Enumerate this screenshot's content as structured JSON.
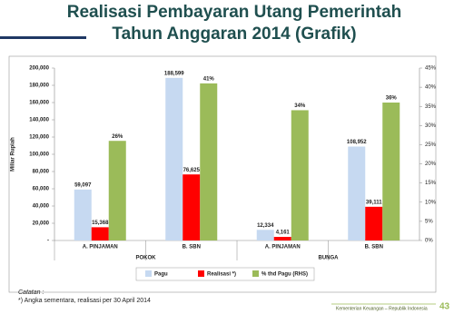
{
  "chart_data": {
    "type": "bar",
    "title": "Realisasi Pembayaran Utang Pemerintah",
    "subtitle": "Tahun Anggaran 2014 (Grafik)",
    "y_label": "Miliar Rupiah",
    "categories": [
      "A. PINJAMAN",
      "B. SBN",
      "A. PINJAMAN",
      "B. SBN"
    ],
    "groups": [
      "POKOK",
      "BUNGA"
    ],
    "series": [
      {
        "name": "Pagu",
        "color": "#c6d9f1",
        "values": [
          59097,
          188599,
          12334,
          108952
        ],
        "value_labels": [
          "59,097",
          "188,599",
          "12,334",
          "108,952"
        ]
      },
      {
        "name": "Realisasi *)",
        "color": "#ff0000",
        "values": [
          15368,
          76625,
          4161,
          39111
        ],
        "value_labels": [
          "15,368",
          "76,625",
          "4,161",
          "39,111"
        ]
      },
      {
        "name": "% thd Pagu (RHS)",
        "color": "#9bbb59",
        "axis": "y2",
        "values": [
          26,
          41,
          34,
          36
        ],
        "value_labels": [
          "26%",
          "41%",
          "34%",
          "36%"
        ]
      }
    ],
    "ylim": [
      0,
      200000
    ],
    "yticks": [
      {
        "value": 0,
        "label": "-"
      },
      {
        "value": 20000,
        "label": "20,000"
      },
      {
        "value": 40000,
        "label": "40,000"
      },
      {
        "value": 60000,
        "label": "60,000"
      },
      {
        "value": 80000,
        "label": "80,000"
      },
      {
        "value": 100000,
        "label": "100,000"
      },
      {
        "value": 120000,
        "label": "120,000"
      },
      {
        "value": 140000,
        "label": "140,000"
      },
      {
        "value": 160000,
        "label": "160,000"
      },
      {
        "value": 180000,
        "label": "180,000"
      },
      {
        "value": 200000,
        "label": "200,000"
      }
    ],
    "y2lim": [
      0,
      45
    ],
    "y2ticks": [
      {
        "value": 0,
        "label": "0%"
      },
      {
        "value": 5,
        "label": "5%"
      },
      {
        "value": 10,
        "label": "10%"
      },
      {
        "value": 15,
        "label": "15%"
      },
      {
        "value": 20,
        "label": "20%"
      },
      {
        "value": 25,
        "label": "25%"
      },
      {
        "value": 30,
        "label": "30%"
      },
      {
        "value": 35,
        "label": "35%"
      },
      {
        "value": 40,
        "label": "40%"
      },
      {
        "value": 45,
        "label": "45%"
      }
    ],
    "grid": false,
    "legend": "bottom",
    "notes": [
      "Catatan :",
      "*) Angka sementara, realisasi per 30 April 2014"
    ]
  },
  "footer": {
    "org": "Kementerian Keuangan – Republik Indonesia",
    "page": "43"
  }
}
